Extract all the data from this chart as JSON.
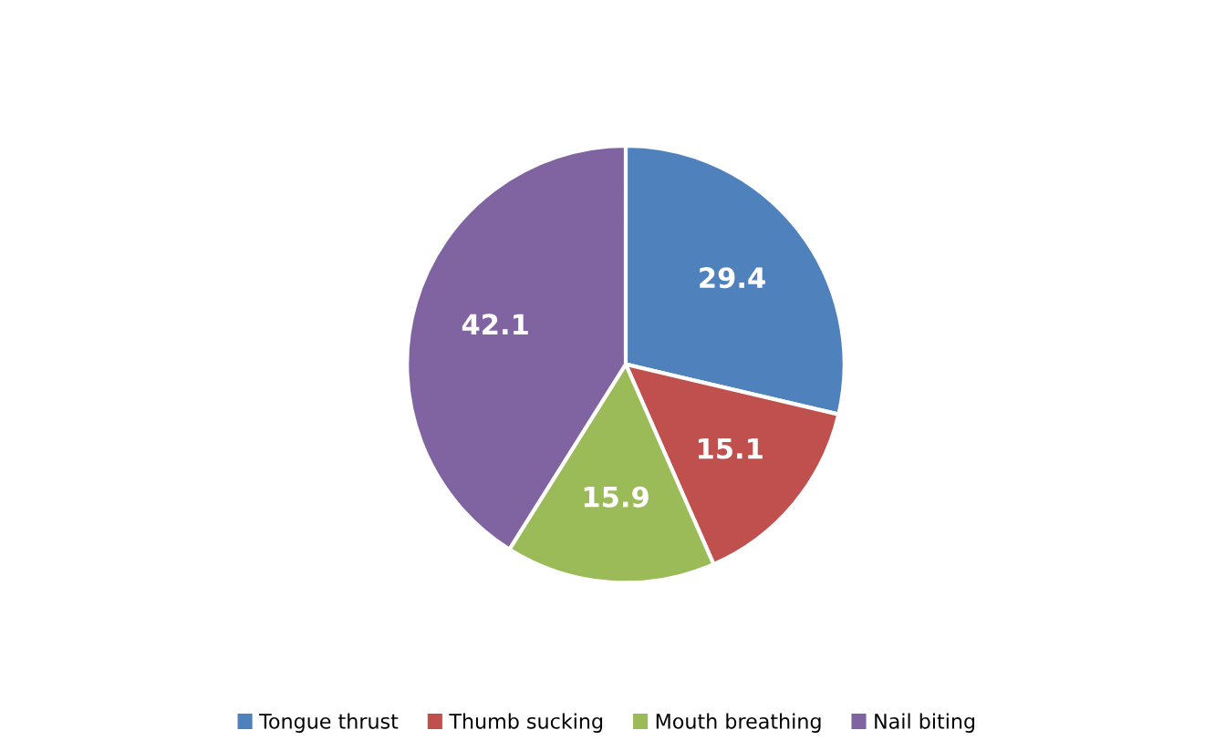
{
  "chart_data": {
    "type": "pie",
    "categories": [
      "Tongue thrust",
      "Thumb sucking",
      "Mouth breathing",
      "Nail biting"
    ],
    "values": [
      29.4,
      15.1,
      15.9,
      42.1
    ],
    "colors": [
      "#4f81bd",
      "#c0504d",
      "#9bbb59",
      "#8064a2"
    ],
    "data_labels": true,
    "legend": "bottom"
  }
}
